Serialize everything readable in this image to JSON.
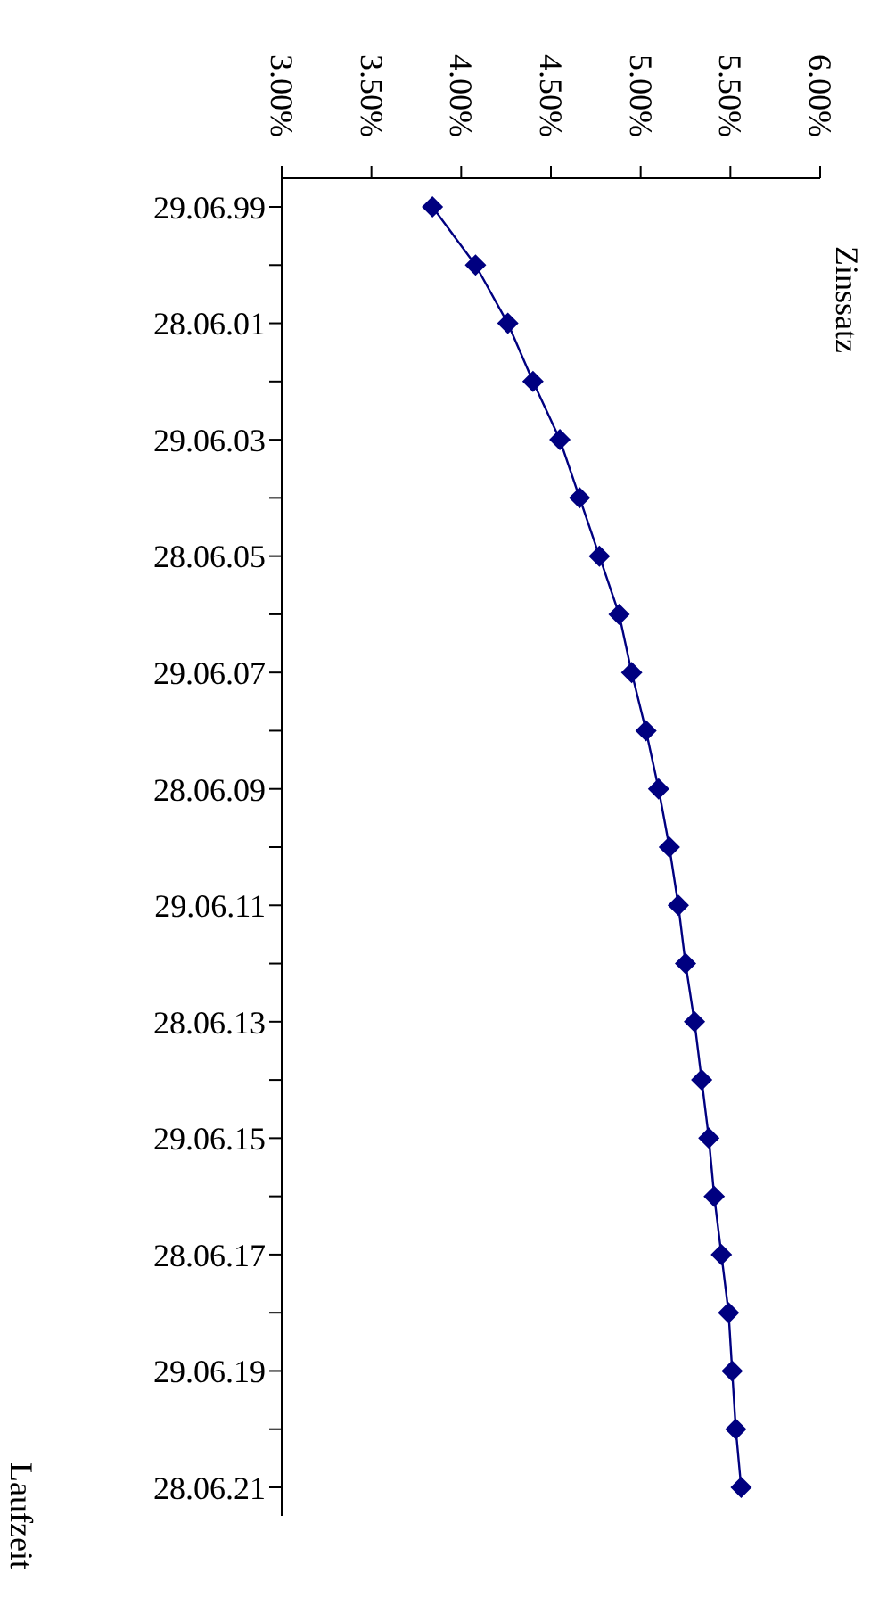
{
  "chart_data": {
    "type": "line",
    "orientation": "horizontal",
    "annotations": [
      "Zinssatz"
    ],
    "ylabel": "Laufzeit",
    "categories": [
      "29.06.99",
      null,
      "28.06.01",
      null,
      "29.06.03",
      null,
      "28.06.05",
      null,
      "29.06.07",
      null,
      "28.06.09",
      null,
      "29.06.11",
      null,
      "28.06.13",
      null,
      "29.06.15",
      null,
      "28.06.17",
      null,
      "29.06.19",
      null,
      "28.06.21"
    ],
    "series": [
      {
        "color": "#000080",
        "values": [
          3.84,
          4.08,
          4.26,
          4.4,
          4.55,
          4.66,
          4.77,
          4.88,
          4.95,
          5.03,
          5.1,
          5.16,
          5.21,
          5.25,
          5.3,
          5.34,
          5.38,
          5.41,
          5.45,
          5.49,
          5.51,
          5.53,
          5.56
        ]
      }
    ],
    "xlim": [
      3,
      6
    ],
    "xticks": [
      {
        "value": 3,
        "label": "3.00%"
      },
      {
        "value": 3.5,
        "label": "3.50%"
      },
      {
        "value": 4,
        "label": "4.00%"
      },
      {
        "value": 4.5,
        "label": "4.50%"
      },
      {
        "value": 5,
        "label": "5.00%"
      },
      {
        "value": 5.5,
        "label": "5.50%"
      },
      {
        "value": 6,
        "label": "6.00%"
      }
    ],
    "marker": "diamond",
    "line_style": "solid"
  }
}
